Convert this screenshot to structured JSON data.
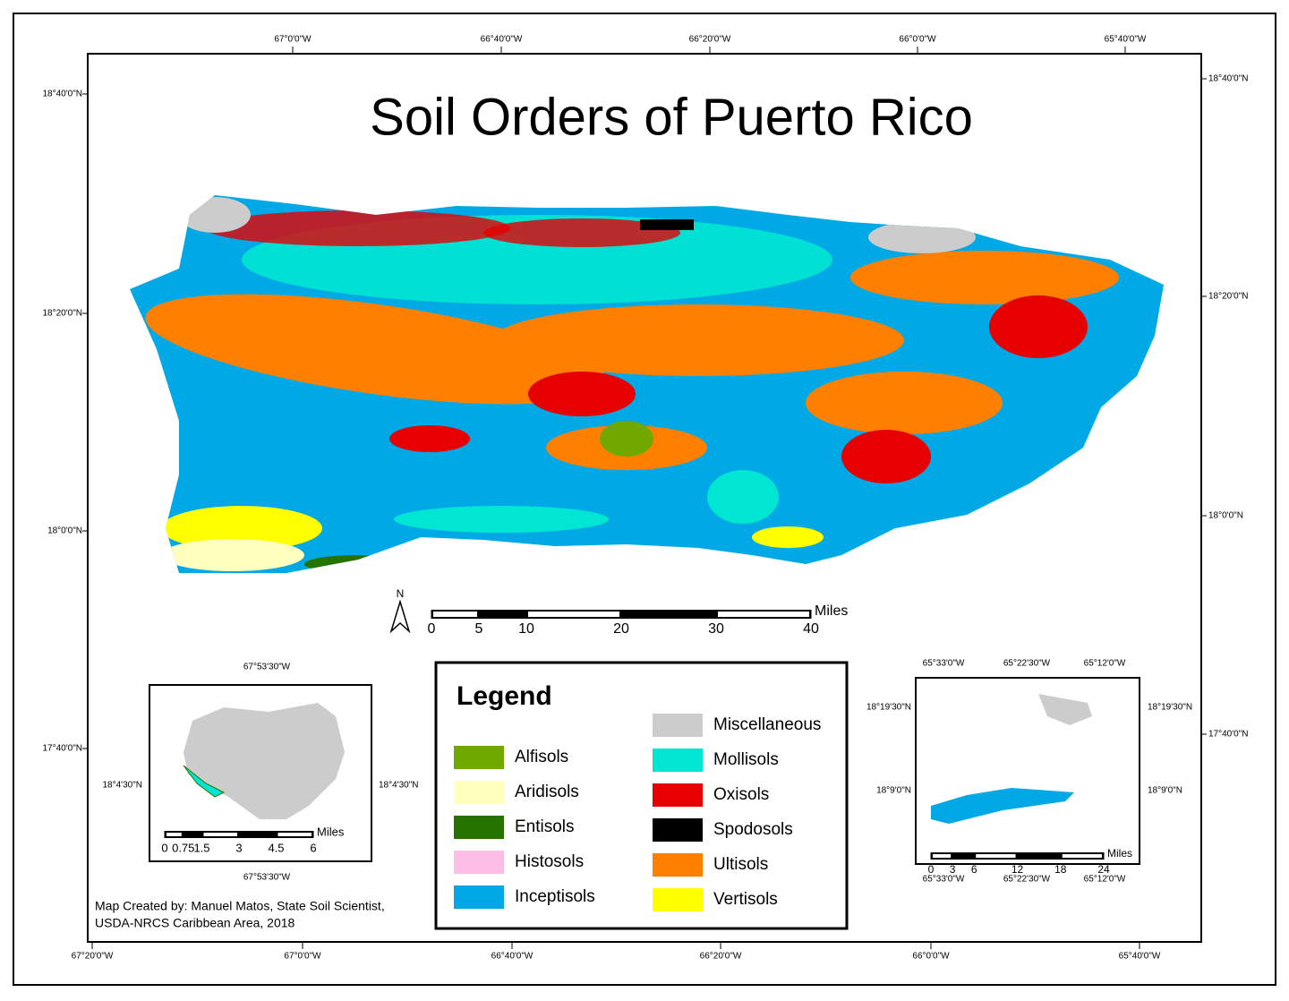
{
  "title": "Soil Orders of Puerto Rico",
  "graticule": {
    "top": [
      "67°0'0\"W",
      "66°40'0\"W",
      "66°20'0\"W",
      "66°0'0\"W",
      "65°40'0\"W"
    ],
    "bottom": [
      "67°20'0\"W",
      "67°0'0\"W",
      "66°40'0\"W",
      "66°20'0\"W",
      "66°0'0\"W",
      "65°40'0\"W"
    ],
    "left": [
      "18°40'0\"N",
      "18°20'0\"N",
      "18°0'0\"N",
      "17°40'0\"N"
    ],
    "right": [
      "18°40'0\"N",
      "18°20'0\"N",
      "18°0'0\"N",
      "17°40'0\"N"
    ]
  },
  "north_arrow": "N",
  "scale_bar": {
    "ticks": [
      0,
      5,
      10,
      20,
      30,
      40
    ],
    "unit": "Miles"
  },
  "legend": {
    "title": "Legend",
    "items": [
      {
        "label": "Alfisols",
        "color": "#70a800"
      },
      {
        "label": "Aridisols",
        "color": "#ffffbe"
      },
      {
        "label": "Entisols",
        "color": "#267300"
      },
      {
        "label": "Histosols",
        "color": "#ffbee8"
      },
      {
        "label": "Inceptisols",
        "color": "#00a9e6"
      },
      {
        "label": "Miscellaneous",
        "color": "#cccccc"
      },
      {
        "label": "Mollisols",
        "color": "#00e6d2"
      },
      {
        "label": "Oxisols",
        "color": "#e60000"
      },
      {
        "label": "Spodosols",
        "color": "#000000"
      },
      {
        "label": "Ultisols",
        "color": "#ff8000"
      },
      {
        "label": "Vertisols",
        "color": "#ffff00"
      }
    ]
  },
  "inset_mona": {
    "top": "67°53'30\"W",
    "bottom": "67°53'30\"W",
    "left": "18°4'30\"N",
    "right": "18°4'30\"N",
    "scale_bar": {
      "ticks": [
        0,
        0.75,
        1.5,
        3,
        4.5,
        6
      ],
      "unit": "Miles"
    }
  },
  "inset_east": {
    "top": [
      "65°33'0\"W",
      "65°22'30\"W",
      "65°12'0\"W"
    ],
    "bottom": [
      "65°33'0\"W",
      "65°22'30\"W",
      "65°12'0\"W"
    ],
    "left": [
      "18°19'30\"N",
      "18°9'0\"N"
    ],
    "right": [
      "18°19'30\"N",
      "18°9'0\"N"
    ],
    "scale_bar": {
      "ticks": [
        0,
        3,
        6,
        12,
        18,
        24
      ],
      "unit": "Miles"
    }
  },
  "credit": [
    "Map Created by: Manuel Matos, State Soil Scientist,",
    "USDA-NRCS Caribbean Area, 2018"
  ]
}
